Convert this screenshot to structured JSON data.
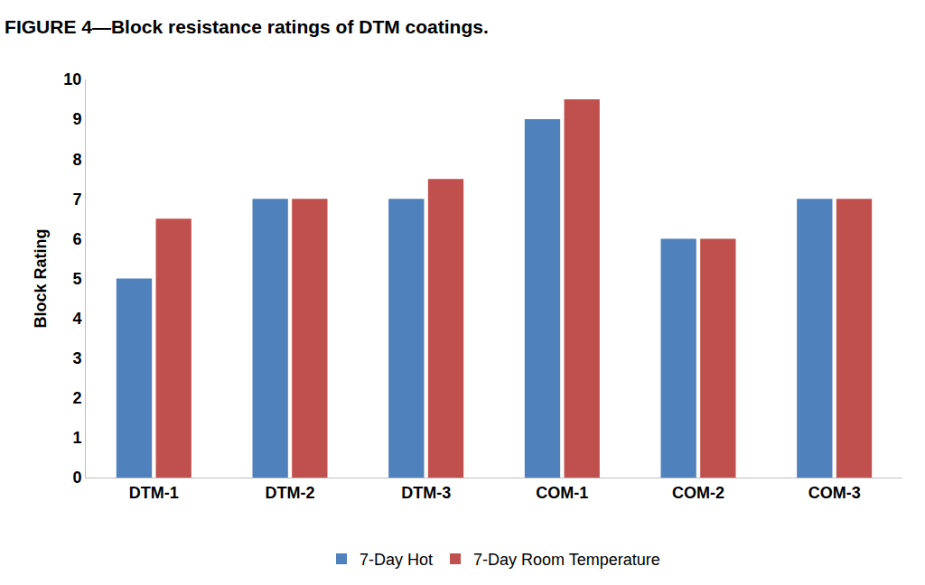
{
  "chart_data": {
    "type": "bar",
    "title": "FIGURE 4—Block resistance ratings of DTM coatings.",
    "y_label": "Block Rating",
    "categories": [
      "DTM-1",
      "DTM-2",
      "DTM-3",
      "COM-1",
      "COM-2",
      "COM-3"
    ],
    "series": [
      {
        "name": "7-Day Hot",
        "color": "#4f81bd",
        "values": [
          5,
          7,
          7,
          9,
          6,
          7
        ]
      },
      {
        "name": "7-Day Room Temperature",
        "color": "#c0504d",
        "values": [
          6.5,
          7,
          7.5,
          9.5,
          6,
          7
        ]
      }
    ],
    "ylim": [
      0,
      10
    ],
    "yticks": [
      0,
      1,
      2,
      3,
      4,
      5,
      6,
      7,
      8,
      9,
      10
    ],
    "grid": false,
    "legend": "bottom"
  }
}
